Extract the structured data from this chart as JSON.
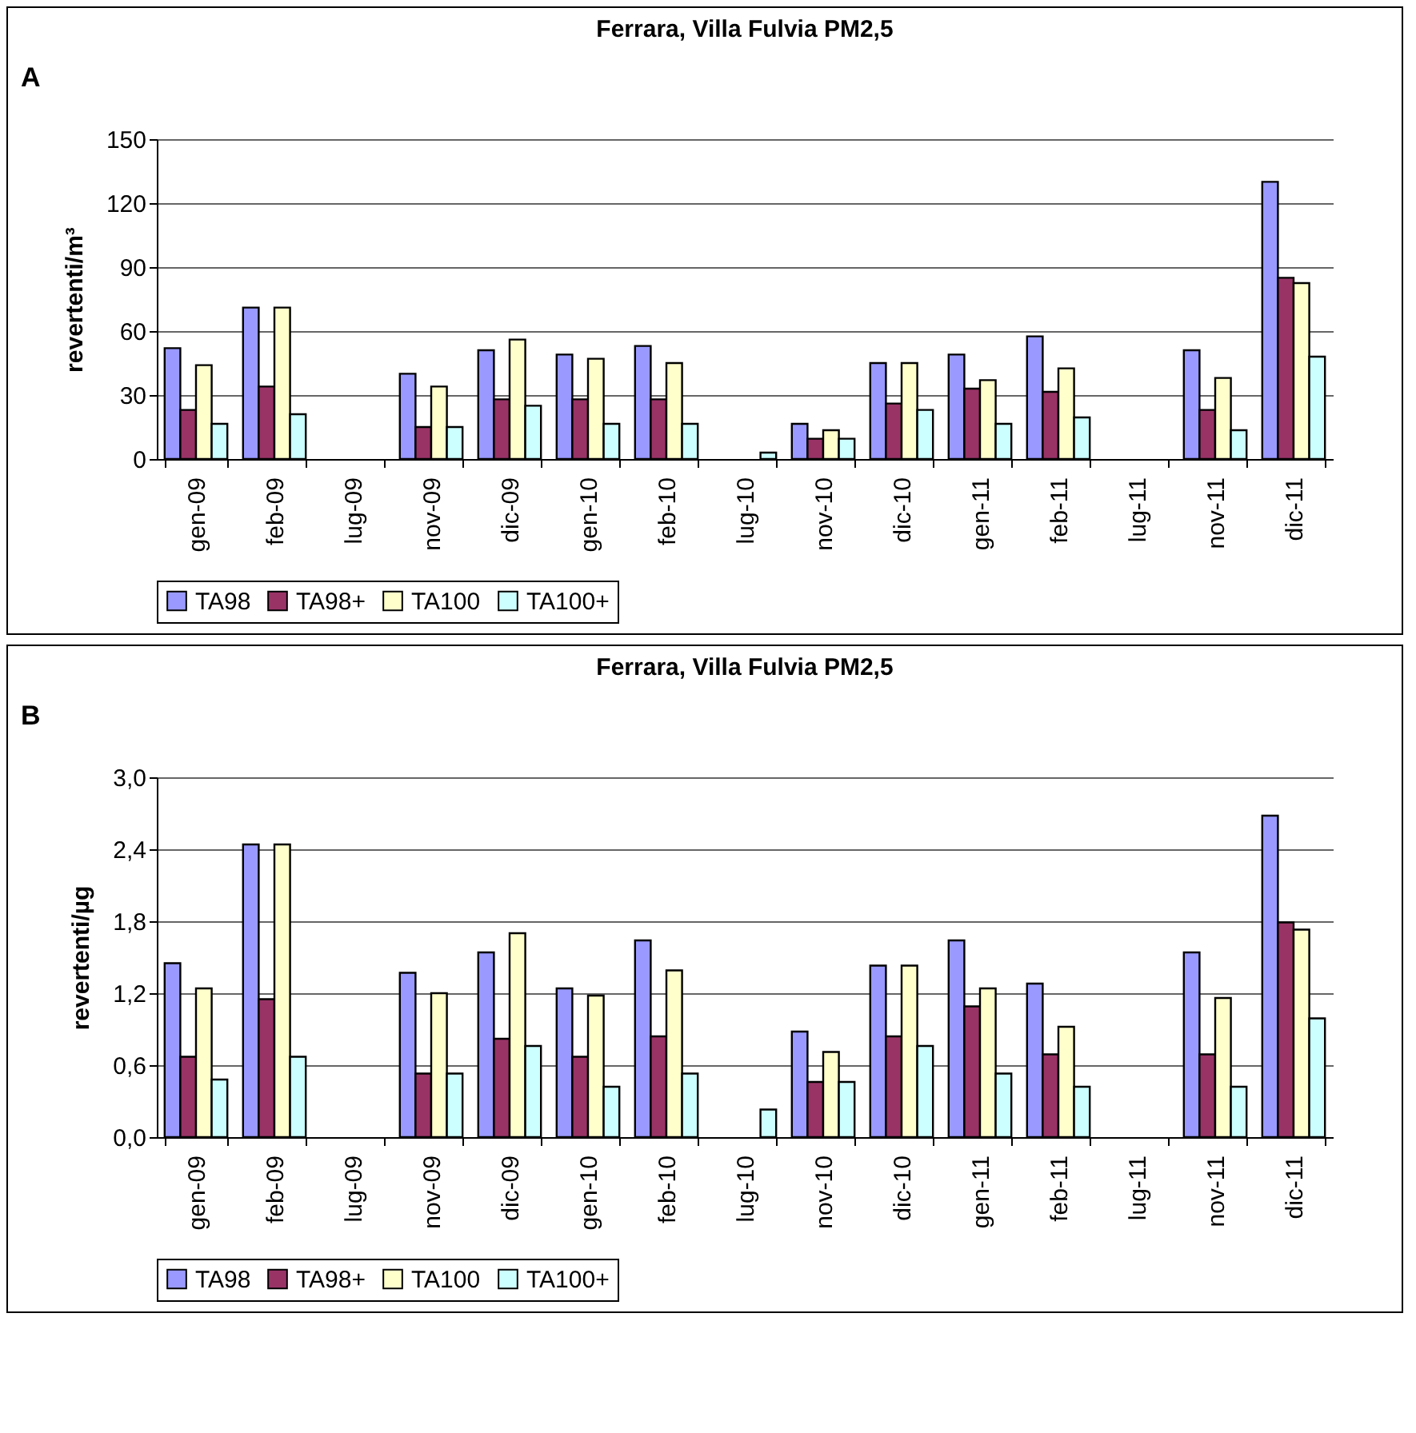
{
  "chart_data": [
    {
      "type": "bar",
      "title": "Ferrara, Villa Fulvia PM2,5",
      "annotations": [
        "A"
      ],
      "ylabel": "revertenti/m³",
      "categories": [
        "gen-09",
        "feb-09",
        "lug-09",
        "nov-09",
        "dic-09",
        "gen-10",
        "feb-10",
        "lug-10",
        "nov-10",
        "dic-10",
        "gen-11",
        "feb-11",
        "lug-11",
        "nov-11",
        "dic-11"
      ],
      "series": [
        {
          "name": "TA98",
          "color": "#9999ff",
          "values": [
            52,
            71,
            null,
            40,
            51,
            49,
            53,
            null,
            16.5,
            45,
            49,
            57.5,
            null,
            51,
            130
          ]
        },
        {
          "name": "TA98+",
          "color": "#993366",
          "values": [
            23,
            34,
            null,
            15,
            28,
            28,
            28,
            null,
            9.5,
            26,
            33,
            31.5,
            null,
            23,
            85
          ]
        },
        {
          "name": "TA100",
          "color": "#ffffcc",
          "values": [
            44,
            71,
            null,
            34,
            56,
            47,
            45,
            null,
            13.5,
            45,
            37,
            42.5,
            null,
            38,
            82.5
          ]
        },
        {
          "name": "TA100+",
          "color": "#ccffff",
          "values": [
            16.5,
            21,
            null,
            15,
            25,
            16.5,
            16.5,
            3,
            9.5,
            23,
            16.5,
            19.5,
            null,
            13.5,
            48
          ]
        }
      ],
      "ylim": [
        0,
        150
      ],
      "yticks": [
        0,
        30,
        60,
        90,
        120,
        150
      ],
      "grid": "y",
      "legend": "bottom"
    },
    {
      "type": "bar",
      "title": "Ferrara, Villa Fulvia PM2,5",
      "annotations": [
        "B"
      ],
      "ylabel": "revertenti/µg",
      "categories": [
        "gen-09",
        "feb-09",
        "lug-09",
        "nov-09",
        "dic-09",
        "gen-10",
        "feb-10",
        "lug-10",
        "nov-10",
        "dic-10",
        "gen-11",
        "feb-11",
        "lug-11",
        "nov-11",
        "dic-11"
      ],
      "series": [
        {
          "name": "TA98",
          "color": "#9999ff",
          "values": [
            1.45,
            2.44,
            null,
            1.37,
            1.54,
            1.24,
            1.64,
            null,
            0.88,
            1.43,
            1.64,
            1.28,
            null,
            1.54,
            2.68
          ]
        },
        {
          "name": "TA98+",
          "color": "#993366",
          "values": [
            0.67,
            1.15,
            null,
            0.53,
            0.82,
            0.67,
            0.84,
            null,
            0.46,
            0.84,
            1.09,
            0.69,
            null,
            0.69,
            1.79
          ]
        },
        {
          "name": "TA100",
          "color": "#ffffcc",
          "values": [
            1.24,
            2.44,
            null,
            1.2,
            1.7,
            1.18,
            1.39,
            null,
            0.71,
            1.43,
            1.24,
            0.92,
            null,
            1.16,
            1.73
          ]
        },
        {
          "name": "TA100+",
          "color": "#ccffff",
          "values": [
            0.48,
            0.67,
            null,
            0.53,
            0.76,
            0.42,
            0.53,
            0.23,
            0.46,
            0.76,
            0.53,
            0.42,
            null,
            0.42,
            0.99
          ]
        }
      ],
      "ylim": [
        0,
        3
      ],
      "yticks": [
        {
          "value": 0,
          "label": "0,0"
        },
        {
          "value": 0.6,
          "label": "0,6"
        },
        {
          "value": 1.2,
          "label": "1,2"
        },
        {
          "value": 1.8,
          "label": "1,8"
        },
        {
          "value": 2.4,
          "label": "2,4"
        },
        {
          "value": 3,
          "label": "3,0"
        }
      ],
      "grid": "y",
      "legend": "bottom"
    }
  ]
}
